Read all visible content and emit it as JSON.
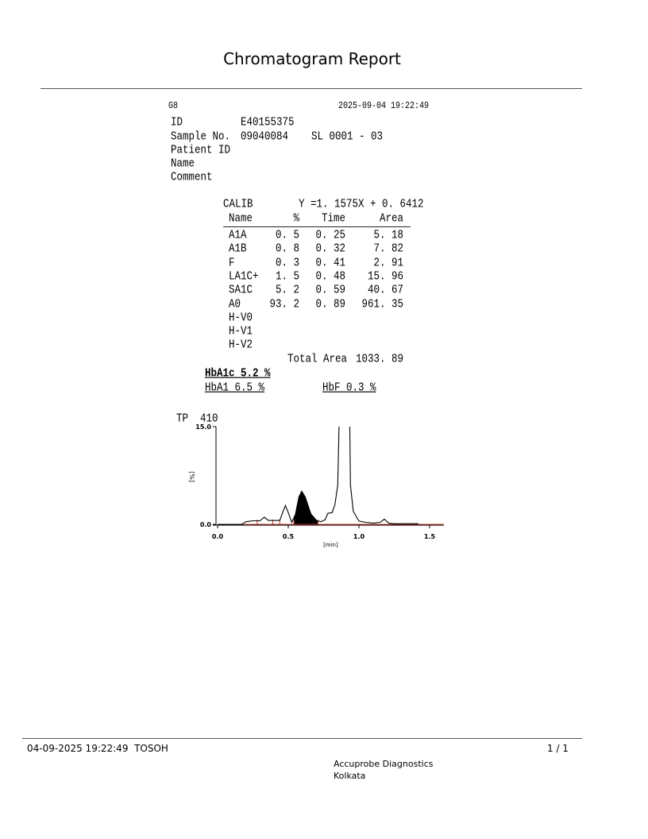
{
  "title": "Chromatogram Report",
  "header": {
    "device": "G8",
    "datetime": "2025-09-04 19:22:49"
  },
  "sample": {
    "id_label": "ID",
    "id_value": "E40155375",
    "sample_no_label": "Sample No.",
    "sample_no_value": "09040084",
    "position": "SL 0001 - 03",
    "patient_id_label": "Patient ID",
    "name_label": "Name",
    "comment_label": "Comment"
  },
  "calib": {
    "label": "CALIB",
    "equation": "Y =1. 1575X + 0. 6412"
  },
  "table": {
    "headers": [
      "Name",
      "%",
      "Time",
      "Area"
    ],
    "rows": [
      [
        "A1A",
        "0. 5",
        "0. 25",
        "5. 18"
      ],
      [
        "A1B",
        "0. 8",
        "0. 32",
        "7. 82"
      ],
      [
        "F",
        "0. 3",
        "0. 41",
        "2. 91"
      ],
      [
        "LA1C+",
        "1. 5",
        "0. 48",
        "15. 96"
      ],
      [
        "SA1C",
        "5. 2",
        "0. 59",
        "40. 67"
      ],
      [
        "A0",
        "93. 2",
        "0. 89",
        "961. 35"
      ],
      [
        "H-V0",
        "",
        "",
        ""
      ],
      [
        "H-V1",
        "",
        "",
        ""
      ],
      [
        "H-V2",
        "",
        "",
        ""
      ]
    ],
    "total_label": "Total Area",
    "total_value": "1033. 89"
  },
  "results": {
    "hba1c": "HbA1c 5.2 %",
    "hba1": "HbA1 6.5 %",
    "hbf": "HbF 0.3 %"
  },
  "chart_data": {
    "type": "line",
    "title": "TP  410",
    "xlabel": "[min]",
    "ylabel": "[%]",
    "xlim": [
      0.0,
      1.6
    ],
    "ylim": [
      0.0,
      15.0
    ],
    "xticks": [
      "0.0",
      "0.5",
      "1.0",
      "1.5"
    ],
    "yticks": [
      "0.0",
      "15.0"
    ],
    "trace": [
      [
        0.0,
        0
      ],
      [
        0.17,
        0
      ],
      [
        0.2,
        0.4
      ],
      [
        0.25,
        0.55
      ],
      [
        0.3,
        0.55
      ],
      [
        0.33,
        1.1
      ],
      [
        0.36,
        0.6
      ],
      [
        0.44,
        0.6
      ],
      [
        0.46,
        1.8
      ],
      [
        0.48,
        2.9
      ],
      [
        0.5,
        1.8
      ],
      [
        0.525,
        0.3
      ],
      [
        0.55,
        1.5
      ],
      [
        0.575,
        4.2
      ],
      [
        0.595,
        5.1
      ],
      [
        0.62,
        4.2
      ],
      [
        0.66,
        1.6
      ],
      [
        0.7,
        0.6
      ],
      [
        0.73,
        0.4
      ],
      [
        0.76,
        0.7
      ],
      [
        0.78,
        1.7
      ],
      [
        0.81,
        1.8
      ],
      [
        0.83,
        3
      ],
      [
        0.85,
        6
      ],
      [
        0.86,
        16
      ],
      [
        0.935,
        16
      ],
      [
        0.94,
        6
      ],
      [
        0.96,
        2
      ],
      [
        1.0,
        0.5
      ],
      [
        1.05,
        0.3
      ],
      [
        1.1,
        0.2
      ],
      [
        1.15,
        0.3
      ],
      [
        1.18,
        0.8
      ],
      [
        1.21,
        0.2
      ],
      [
        1.25,
        0.1
      ],
      [
        1.42,
        0.1
      ]
    ],
    "shaded_peak": {
      "name": "SA1C",
      "range": [
        0.54,
        0.71
      ]
    },
    "baseline_marks": [
      0.28,
      0.39,
      0.44,
      0.54,
      0.71
    ],
    "colors": {
      "trace": "#000000",
      "baseline": "#c0392b"
    }
  },
  "footer": {
    "left": "04-09-2025 19:22:49  TOSOH",
    "page": "1 / 1",
    "lab": "Accuprobe Diagnostics",
    "city": "Kolkata"
  }
}
